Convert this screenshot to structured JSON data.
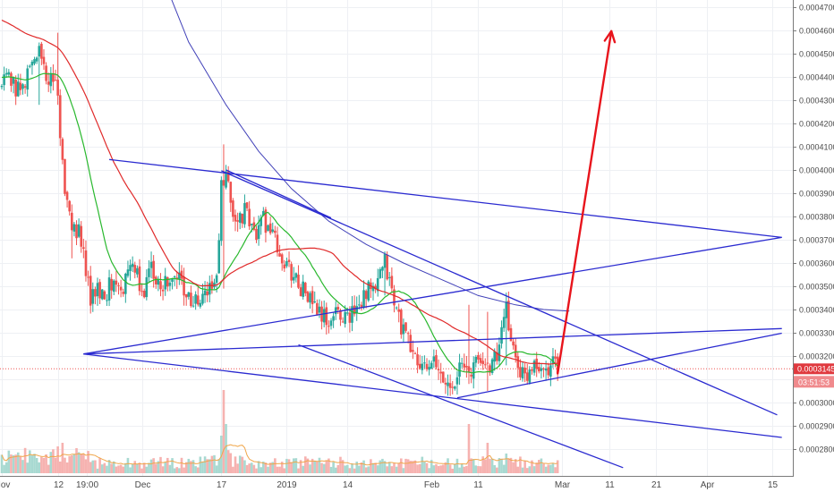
{
  "chart_data": {
    "type": "candlestick",
    "title": "",
    "y_axis": {
      "position": "right",
      "range": [
        0.00027634,
        0.0004715
      ],
      "ticks": [
        "0.0002800",
        "0.0002900",
        "0.0003000",
        "0.0003100",
        "0.0003200",
        "0.0003300",
        "0.0003400",
        "0.0003500",
        "0.0003600",
        "0.0003700",
        "0.0003800",
        "0.0003900",
        "0.0004000",
        "0.0004100",
        "0.0004200",
        "0.0004300",
        "0.0004400",
        "0.0004500",
        "0.0004600",
        "0.0004700"
      ]
    },
    "x_axis": {
      "ticks": [
        {
          "label": "Nov",
          "day": 0
        },
        {
          "label": "12",
          "day": 12
        },
        {
          "label": "19:00",
          "day": 18.2
        },
        {
          "label": "Dec",
          "day": 30
        },
        {
          "label": "17",
          "day": 47
        },
        {
          "label": "2019",
          "day": 61
        },
        {
          "label": "14",
          "day": 74
        },
        {
          "label": "Feb",
          "day": 92
        },
        {
          "label": "11",
          "day": 102
        },
        {
          "label": "Mar",
          "day": 120
        },
        {
          "label": "11",
          "day": 130
        },
        {
          "label": "21",
          "day": 140
        },
        {
          "label": "Apr",
          "day": 151
        },
        {
          "label": "15",
          "day": 165
        }
      ]
    },
    "last_price": {
      "value": "0.0003145",
      "price": 0.0003145,
      "countdown": "03:51:53",
      "color": "#e0393e"
    },
    "colors": {
      "up": "#26a69a",
      "down": "#ef5350",
      "ma_fast": "#29b82e",
      "ma_mid": "#e02a2a",
      "ma_slow": "#4040b8",
      "trendline": "#2a2ad0",
      "arrow": "#e8141c"
    },
    "price_keyframes": [
      [
        0,
        0.000436
      ],
      [
        2,
        0.00044
      ],
      [
        4,
        0.000432
      ],
      [
        6,
        0.000444
      ],
      [
        8,
        0.000452
      ],
      [
        10,
        0.000438
      ],
      [
        12,
        0.000434
      ],
      [
        13,
        0.000402
      ],
      [
        14,
        0.000385
      ],
      [
        15,
        0.000378
      ],
      [
        16,
        0.000375
      ],
      [
        17,
        0.000371
      ],
      [
        19,
        0.000342
      ],
      [
        20,
        0.00035
      ],
      [
        22,
        0.000345
      ],
      [
        24,
        0.000355
      ],
      [
        26,
        0.00035
      ],
      [
        28,
        0.000362
      ],
      [
        30,
        0.000345
      ],
      [
        32,
        0.000358
      ],
      [
        34,
        0.000352
      ],
      [
        36,
        0.00035
      ],
      [
        38,
        0.000355
      ],
      [
        40,
        0.000345
      ],
      [
        42,
        0.000342
      ],
      [
        44,
        0.000348
      ],
      [
        46,
        0.000352
      ],
      [
        47,
        0.000392
      ],
      [
        48,
        0.000395
      ],
      [
        50,
        0.000378
      ],
      [
        52,
        0.000382
      ],
      [
        54,
        0.000372
      ],
      [
        56,
        0.000379
      ],
      [
        58,
        0.000372
      ],
      [
        60,
        0.00036
      ],
      [
        62,
        0.000356
      ],
      [
        64,
        0.00035
      ],
      [
        66,
        0.000344
      ],
      [
        68,
        0.000338
      ],
      [
        70,
        0.000334
      ],
      [
        72,
        0.00034
      ],
      [
        74,
        0.000336
      ],
      [
        76,
        0.000342
      ],
      [
        78,
        0.000348
      ],
      [
        80,
        0.000348
      ],
      [
        82,
        0.00036
      ],
      [
        84,
        0.000343
      ],
      [
        86,
        0.00033
      ],
      [
        88,
        0.000322
      ],
      [
        90,
        0.000313
      ],
      [
        92,
        0.000318
      ],
      [
        94,
        0.00031
      ],
      [
        96,
        0.000307
      ],
      [
        98,
        0.000315
      ],
      [
        100,
        0.000313
      ],
      [
        102,
        0.000318
      ],
      [
        104,
        0.000316
      ],
      [
        106,
        0.00032
      ],
      [
        108,
        0.000339
      ],
      [
        110,
        0.000318
      ],
      [
        112,
        0.00031
      ],
      [
        114,
        0.000319
      ],
      [
        116,
        0.000314
      ],
      [
        118,
        0.000318
      ],
      [
        119,
        0.0003145
      ]
    ],
    "spike_candles": [
      {
        "day": 8,
        "high": 0.0004525,
        "low": 0.000428
      },
      {
        "day": 12,
        "high": 0.000459,
        "low": 0.000428
      },
      {
        "day": 15,
        "high": 0.000382,
        "low": 0.000362
      },
      {
        "day": 47.5,
        "high": 0.000411,
        "low": 0.000349
      },
      {
        "day": 82,
        "high": 0.000365,
        "low": 0.000346
      },
      {
        "day": 100,
        "high": 0.000342,
        "low": 0.000308
      },
      {
        "day": 104,
        "high": 0.000339,
        "low": 0.000305
      },
      {
        "day": 108,
        "high": 0.000341,
        "low": 0.000316
      }
    ],
    "volume_spikes": [
      {
        "day": 12,
        "value": 0.3
      },
      {
        "day": 13,
        "value": 0.34
      },
      {
        "day": 16,
        "value": 0.28
      },
      {
        "day": 47,
        "value": 0.42
      },
      {
        "day": 47.5,
        "value": 0.93
      },
      {
        "day": 48,
        "value": 0.55
      },
      {
        "day": 100,
        "value": 0.55
      },
      {
        "day": 104,
        "value": 0.34
      },
      {
        "day": 108,
        "value": 0.22
      }
    ],
    "trendlines": [
      {
        "d1": 17.5,
        "p1": 0.0003209,
        "d2": 167,
        "p2": 0.0003318
      },
      {
        "d1": 17.5,
        "p1": 0.0003209,
        "d2": 167,
        "p2": 0.000285
      },
      {
        "d1": 17.5,
        "p1": 0.0003209,
        "d2": 167,
        "p2": 0.000371
      },
      {
        "d1": 23,
        "p1": 0.0004045,
        "d2": 167,
        "p2": 0.000371
      },
      {
        "d1": 47,
        "p1": 0.0003997,
        "d2": 166,
        "p2": 0.0002947
      },
      {
        "d1": 48,
        "p1": 0.0004,
        "d2": 70.5,
        "p2": 0.0003794
      },
      {
        "d1": 63.5,
        "p1": 0.0003248,
        "d2": 133,
        "p2": 0.000272
      },
      {
        "d1": 97.5,
        "p1": 0.000302,
        "d2": 167,
        "p2": 0.0003298
      }
    ],
    "projection_arrow": {
      "d1": 119,
      "p1": 0.0003125,
      "d2": 130.5,
      "p2": 0.0004597
    }
  }
}
